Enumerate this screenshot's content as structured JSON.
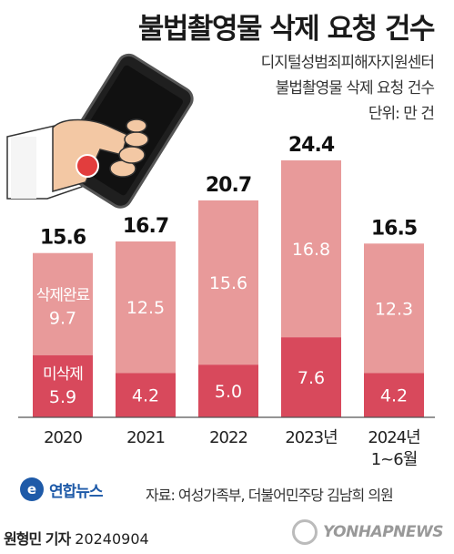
{
  "title": "불법촬영물 삭제 요청 건수",
  "source_lines": [
    "디지털성범죄피해자지원센터",
    "불법촬영물 삭제 요청 건수",
    "단위: 만 건"
  ],
  "footer": {
    "source": "자료: 여성가족부, 더불어민주당 김남희 의원",
    "reporter_name": "원형민 기자",
    "date": "20240904",
    "logo_kr": "연합뉴스",
    "logo_en": "YONHAPNEWS"
  },
  "colors": {
    "completed": "#e89a9a",
    "not_deleted": "#d8495c",
    "baseline": "#555555"
  },
  "chart_data": {
    "type": "bar",
    "stacked": true,
    "categories": [
      {
        "line1": "2020",
        "line2": ""
      },
      {
        "line1": "2021",
        "line2": ""
      },
      {
        "line1": "2022",
        "line2": ""
      },
      {
        "line1": "2023년",
        "line2": ""
      },
      {
        "line1": "2024년",
        "line2": "1~6월"
      }
    ],
    "totals": [
      15.6,
      16.7,
      20.7,
      24.4,
      16.5
    ],
    "series": [
      {
        "name": "미삭제",
        "values": [
          5.9,
          4.2,
          5.0,
          7.6,
          4.2
        ]
      },
      {
        "name": "삭제완료",
        "values": [
          9.7,
          12.5,
          15.6,
          16.8,
          12.3
        ]
      }
    ],
    "unit": "만 건",
    "ylim": [
      0,
      24.4
    ]
  }
}
